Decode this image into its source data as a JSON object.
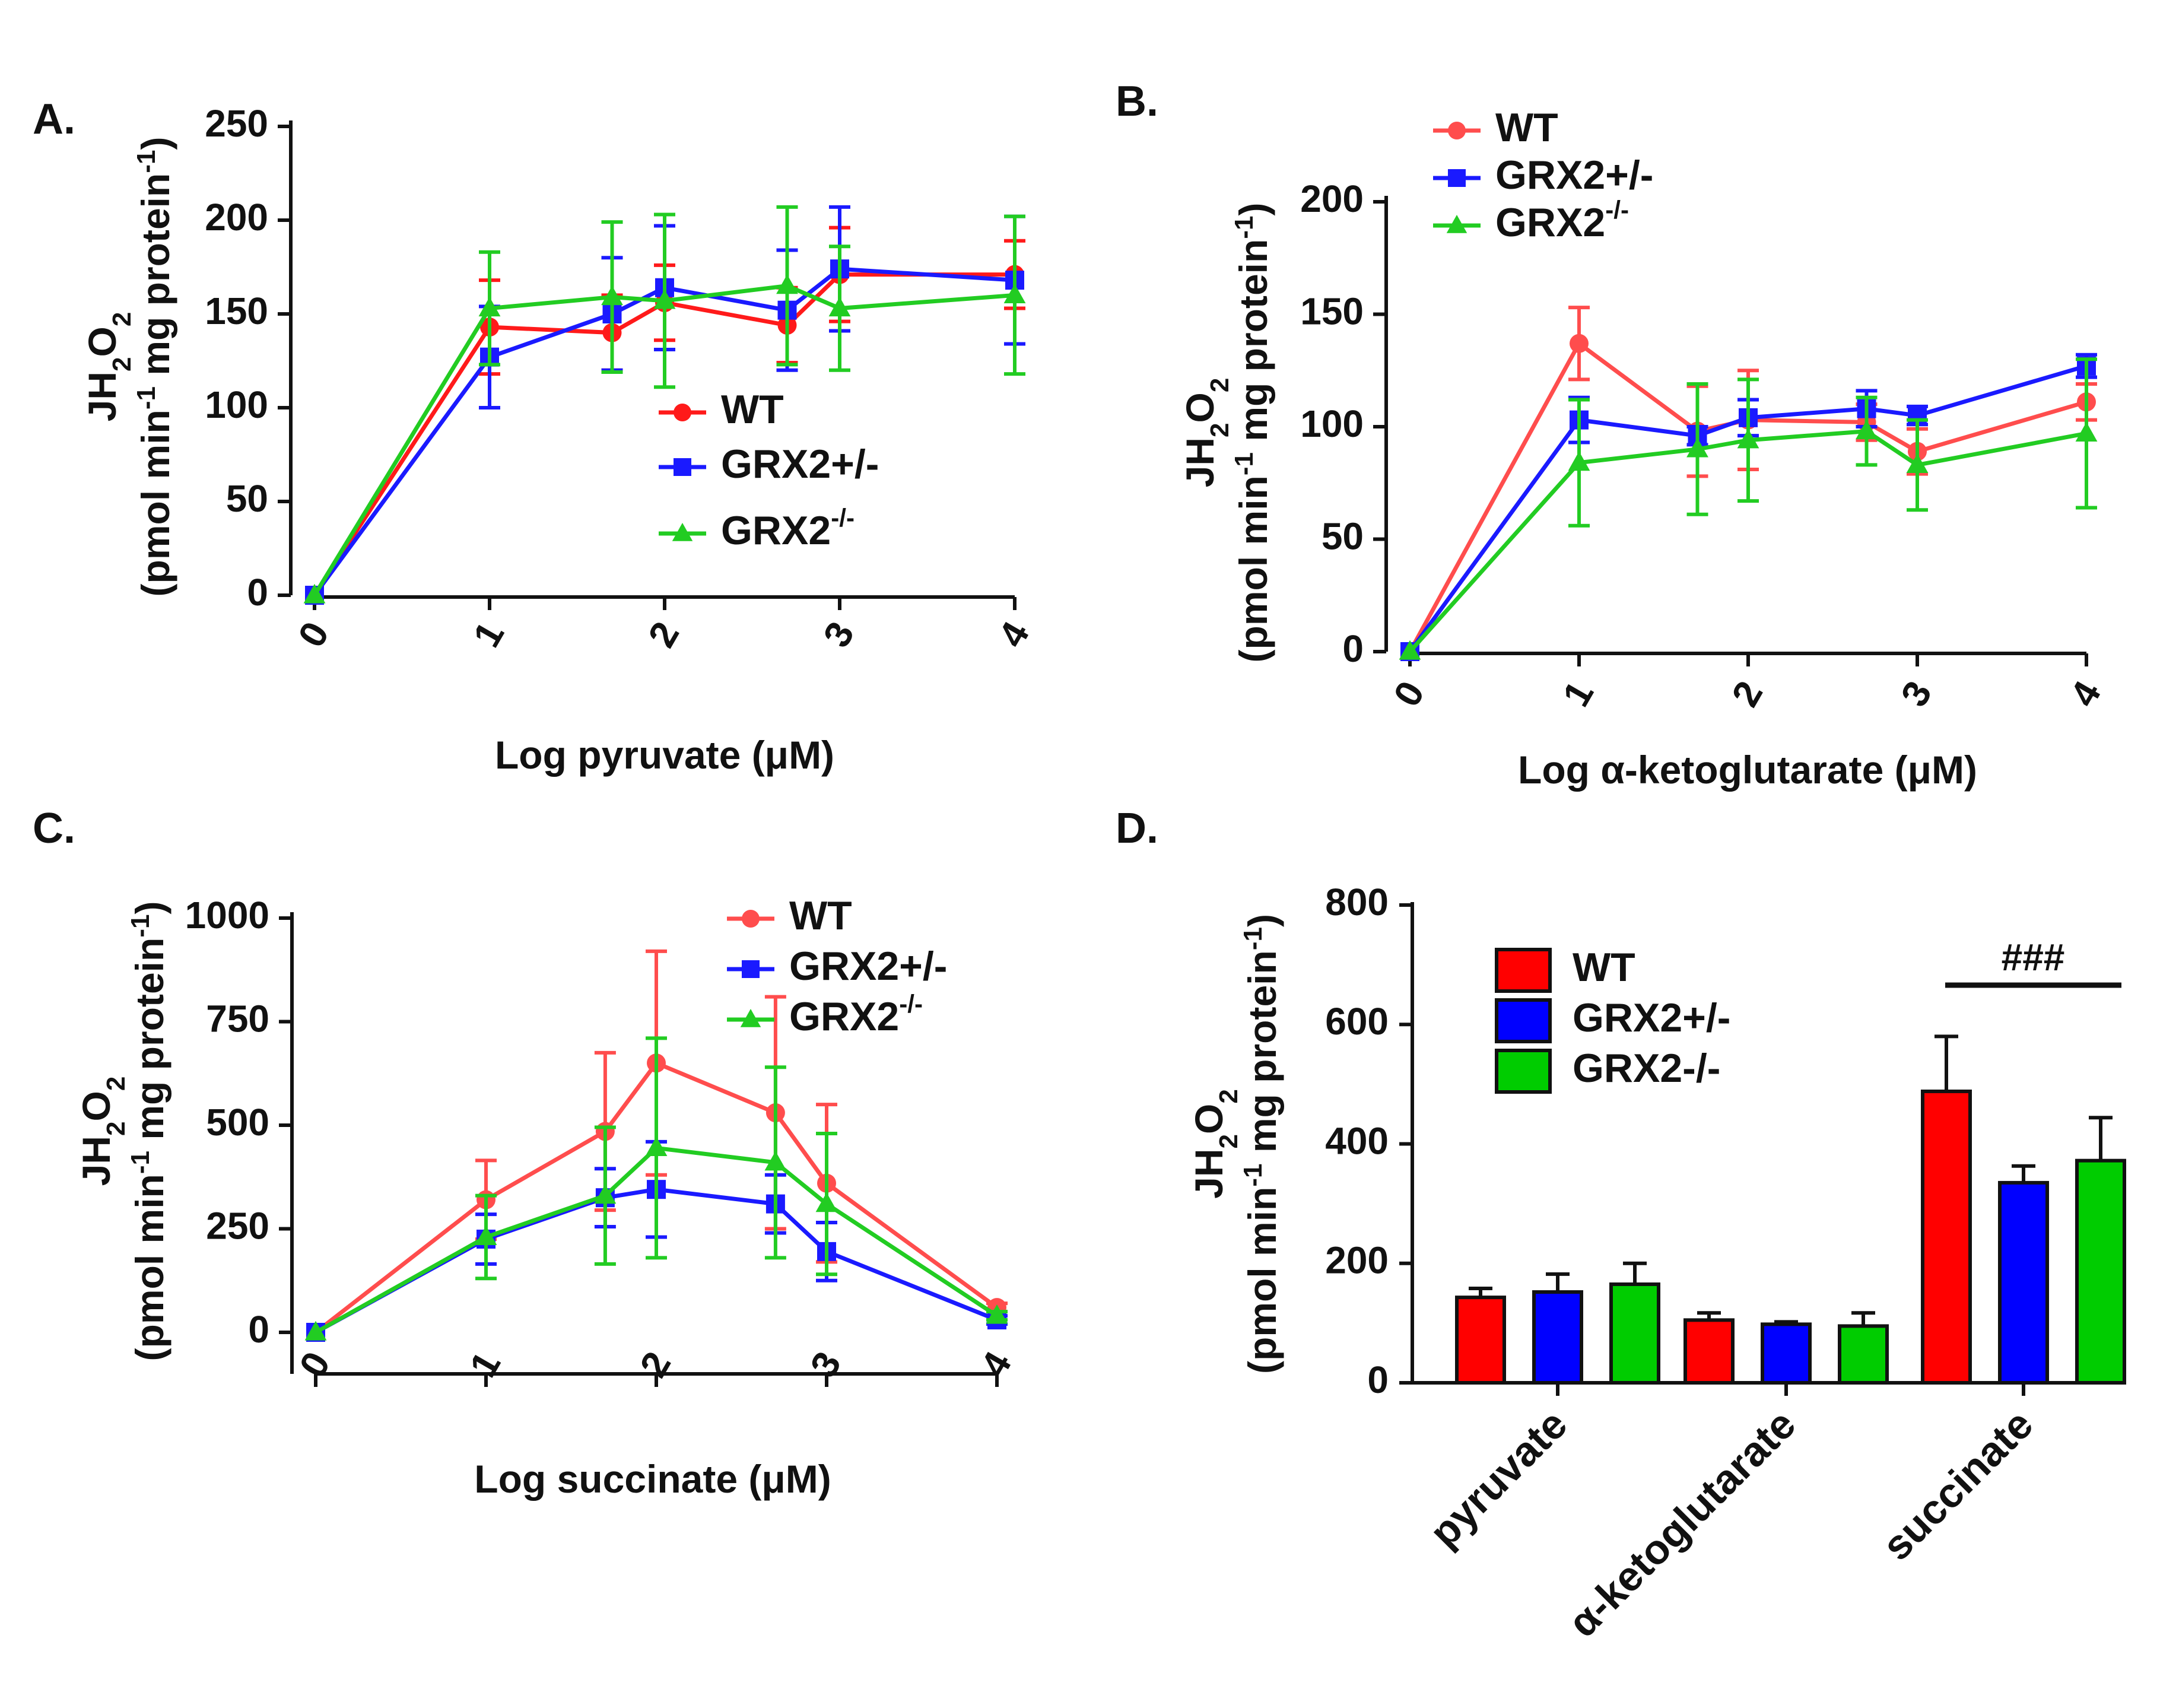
{
  "chart_data": [
    {
      "panel_label": "A.",
      "type": "line",
      "title": "",
      "xlabel": "Log pyruvate (μM)",
      "ylabel": "JH2O2 (pmol min-1 mg protein-1)",
      "xlim": [
        0,
        4
      ],
      "ylim": [
        0,
        250
      ],
      "x_ticks": [
        0,
        1,
        2,
        3,
        4
      ],
      "y_ticks": [
        0,
        50,
        100,
        150,
        200,
        250
      ],
      "legend_position": "center-right",
      "series": [
        {
          "name": "WT",
          "color": "#ff1a1a",
          "marker": "circle",
          "x": [
            0,
            1,
            1.7,
            2,
            2.7,
            3,
            4
          ],
          "y": [
            0,
            143,
            140,
            156,
            144,
            171,
            171
          ],
          "err": [
            0,
            25,
            20,
            20,
            20,
            25,
            18
          ]
        },
        {
          "name": "GRX2+/-",
          "color": "#1a1aff",
          "marker": "square",
          "x": [
            0,
            1,
            1.7,
            2,
            2.7,
            3,
            4
          ],
          "y": [
            0,
            127,
            150,
            164,
            152,
            174,
            168
          ],
          "err": [
            0,
            27,
            30,
            33,
            32,
            33,
            34
          ]
        },
        {
          "name": "GRX2-/-",
          "color": "#22cc22",
          "marker": "triangle",
          "x": [
            0,
            1,
            1.7,
            2,
            2.7,
            3,
            4
          ],
          "y": [
            0,
            153,
            159,
            157,
            165,
            153,
            160
          ],
          "err": [
            0,
            30,
            40,
            46,
            42,
            33,
            42
          ]
        }
      ]
    },
    {
      "panel_label": "B.",
      "type": "line",
      "title": "",
      "xlabel": "Log α-ketoglutarate (μM)",
      "ylabel": "JH2O2 (pmol min-1 mg protein-1)",
      "xlim": [
        0,
        4
      ],
      "ylim": [
        0,
        200
      ],
      "x_ticks": [
        0,
        1,
        2,
        3,
        4
      ],
      "y_ticks": [
        0,
        50,
        100,
        150,
        200
      ],
      "legend_position": "top-left",
      "series": [
        {
          "name": "WT",
          "color": "#ff4d4d",
          "marker": "circle",
          "x": [
            0,
            1,
            1.7,
            2,
            2.7,
            3,
            4
          ],
          "y": [
            0,
            137,
            98,
            103,
            102,
            89,
            111
          ],
          "err": [
            0,
            16,
            20,
            22,
            8,
            10,
            8
          ]
        },
        {
          "name": "GRX2+/-",
          "color": "#1a1aff",
          "marker": "square",
          "x": [
            0,
            1,
            1.7,
            2,
            2.7,
            3,
            4
          ],
          "y": [
            0,
            103,
            96,
            104,
            108,
            105,
            127
          ],
          "err": [
            0,
            10,
            4,
            8,
            8,
            4,
            5
          ]
        },
        {
          "name": "GRX2-/-",
          "color": "#22cc22",
          "marker": "triangle",
          "x": [
            0,
            1,
            1.7,
            2,
            2.7,
            3,
            4
          ],
          "y": [
            0,
            84,
            90,
            94,
            98,
            83,
            97
          ],
          "err": [
            0,
            28,
            29,
            27,
            15,
            20,
            33
          ]
        }
      ]
    },
    {
      "panel_label": "C.",
      "type": "line",
      "title": "",
      "xlabel": "Log succinate (μM)",
      "ylabel": "JH2O2 (pmol min-1 mg protein-1)",
      "xlim": [
        0,
        4
      ],
      "ylim": [
        -100,
        1000
      ],
      "x_ticks": [
        0,
        1,
        2,
        3,
        4
      ],
      "y_ticks": [
        0,
        250,
        500,
        750,
        1000
      ],
      "legend_position": "top-right",
      "series": [
        {
          "name": "WT",
          "color": "#ff4d4d",
          "marker": "circle",
          "x": [
            0,
            1,
            1.7,
            2,
            2.7,
            3,
            4
          ],
          "y": [
            0,
            320,
            485,
            650,
            530,
            360,
            60
          ],
          "err": [
            0,
            95,
            190,
            270,
            280,
            190,
            10
          ]
        },
        {
          "name": "GRX2+/-",
          "color": "#1a1aff",
          "marker": "square",
          "x": [
            0,
            1,
            1.7,
            2,
            2.7,
            3,
            4
          ],
          "y": [
            0,
            225,
            325,
            345,
            310,
            195,
            30
          ],
          "err": [
            0,
            60,
            70,
            115,
            70,
            70,
            10
          ]
        },
        {
          "name": "GRX2-/-",
          "color": "#22cc22",
          "marker": "triangle",
          "x": [
            0,
            1,
            1.7,
            2,
            2.7,
            3,
            4
          ],
          "y": [
            0,
            230,
            330,
            445,
            410,
            310,
            40
          ],
          "err": [
            0,
            100,
            165,
            265,
            230,
            170,
            10
          ]
        }
      ]
    },
    {
      "panel_label": "D.",
      "type": "bar",
      "title": "",
      "xlabel": "",
      "ylabel": "JH2O2 (pmol min-1 mg protein-1)",
      "ylim": [
        0,
        800
      ],
      "y_ticks": [
        0,
        200,
        400,
        600,
        800
      ],
      "categories": [
        "pyruvate",
        "α-ketoglutarate",
        "succinate"
      ],
      "legend_position": "top-left",
      "series": [
        {
          "name": "WT",
          "color": "#ff0000",
          "values": [
            143,
            105,
            488
          ],
          "err": [
            15,
            12,
            92
          ]
        },
        {
          "name": "GRX2+/-",
          "color": "#0000ff",
          "values": [
            152,
            98,
            335
          ],
          "err": [
            30,
            4,
            28
          ]
        },
        {
          "name": "GRX2-/-",
          "color": "#00cc00",
          "values": [
            165,
            95,
            372
          ],
          "err": [
            35,
            22,
            72
          ]
        }
      ],
      "annotation": "###"
    }
  ]
}
